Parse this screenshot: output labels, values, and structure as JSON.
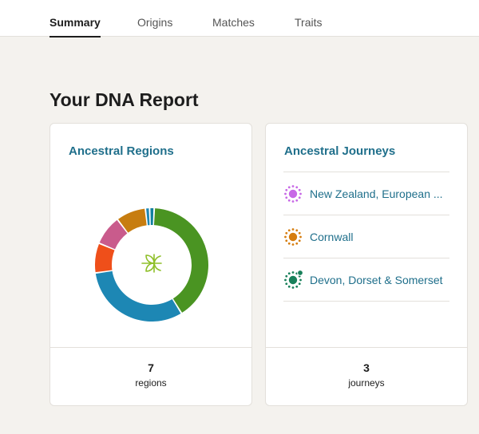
{
  "tabs": [
    {
      "label": "Summary",
      "active": true
    },
    {
      "label": "Origins",
      "active": false
    },
    {
      "label": "Matches",
      "active": false
    },
    {
      "label": "Traits",
      "active": false
    }
  ],
  "page_title": "Your DNA Report",
  "regions_card": {
    "title": "Ancestral Regions",
    "count": "7",
    "count_label": "regions",
    "center_icon": "sprout-icon",
    "segments": [
      {
        "share": 0.405,
        "color": "#4a9422"
      },
      {
        "share": 0.315,
        "color": "#1d87b4"
      },
      {
        "share": 0.085,
        "color": "#ef4f1a"
      },
      {
        "share": 0.085,
        "color": "#c95b8c"
      },
      {
        "share": 0.085,
        "color": "#c77d10"
      },
      {
        "share": 0.012,
        "color": "#1d87b4"
      },
      {
        "share": 0.013,
        "color": "#117f9f"
      }
    ]
  },
  "journeys_card": {
    "title": "Ancestral Journeys",
    "count": "3",
    "count_label": "journeys",
    "items": [
      {
        "label": "New Zealand, European ...",
        "color": "#c768e6",
        "badge": false
      },
      {
        "label": "Cornwall",
        "color": "#d67d0f",
        "badge": false
      },
      {
        "label": "Devon, Dorset & Somerset",
        "color": "#18805a",
        "badge": true
      }
    ]
  },
  "colors": {
    "accent_link": "#1f6f8b",
    "page_background": "#f4f2ee",
    "card_border": "#e3e0db",
    "sprout_icon": "#8fbf2a"
  }
}
